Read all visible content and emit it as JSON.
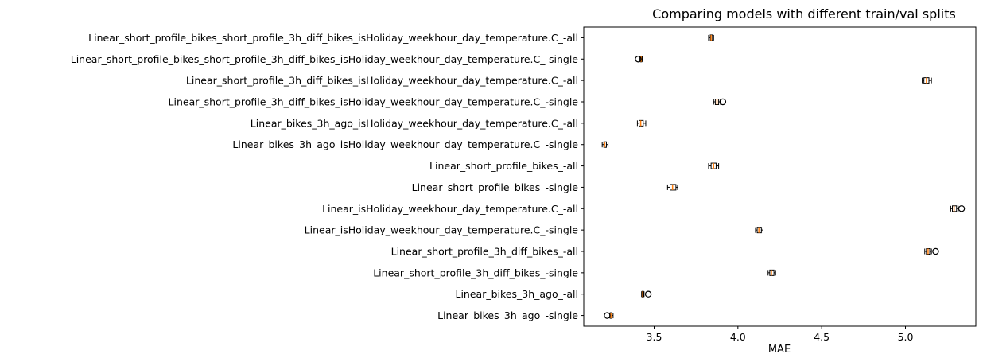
{
  "chart_data": {
    "type": "box",
    "orientation": "horizontal",
    "title": "Comparing models with different train/val splits",
    "xlabel": "MAE",
    "ylabel": "",
    "xlim": [
      3.08,
      5.42
    ],
    "xticks": [
      "3.5",
      "4.0",
      "4.5",
      "5.0"
    ],
    "xtick_values": [
      3.5,
      4.0,
      4.5,
      5.0
    ],
    "grid": false,
    "colors": {
      "box": "#000000",
      "median": "#ff7f0e",
      "flier": "#000000"
    },
    "categories": [
      "Linear_short_profile_bikes_short_profile_3h_diff_bikes_isHoliday_weekhour_day_temperature.C_-all",
      "Linear_short_profile_bikes_short_profile_3h_diff_bikes_isHoliday_weekhour_day_temperature.C_-single",
      "Linear_short_profile_3h_diff_bikes_isHoliday_weekhour_day_temperature.C_-all",
      "Linear_short_profile_3h_diff_bikes_isHoliday_weekhour_day_temperature.C_-single",
      "Linear_bikes_3h_ago_isHoliday_weekhour_day_temperature.C_-all",
      "Linear_bikes_3h_ago_isHoliday_weekhour_day_temperature.C_-single",
      "Linear_short_profile_bikes_-all",
      "Linear_short_profile_bikes_-single",
      "Linear_isHoliday_weekhour_day_temperature.C_-all",
      "Linear_isHoliday_weekhour_day_temperature.C_-single",
      "Linear_short_profile_3h_diff_bikes_-all",
      "Linear_short_profile_3h_diff_bikes_-single",
      "Linear_bikes_3h_ago_-all",
      "Linear_bikes_3h_ago_-single"
    ],
    "boxes": [
      {
        "whislo": 3.825,
        "q1": 3.835,
        "med": 3.84,
        "q3": 3.848,
        "whishi": 3.855,
        "fliers": []
      },
      {
        "whislo": 3.415,
        "q1": 3.418,
        "med": 3.422,
        "q3": 3.426,
        "whishi": 3.43,
        "fliers": [
          3.405
        ]
      },
      {
        "whislo": 5.1,
        "q1": 5.11,
        "med": 5.125,
        "q3": 5.14,
        "whishi": 5.155,
        "fliers": []
      },
      {
        "whislo": 3.855,
        "q1": 3.865,
        "med": 3.875,
        "q3": 3.885,
        "whishi": 3.895,
        "fliers": [
          3.91
        ]
      },
      {
        "whislo": 3.4,
        "q1": 3.41,
        "med": 3.42,
        "q3": 3.435,
        "whishi": 3.45,
        "fliers": []
      },
      {
        "whislo": 3.19,
        "q1": 3.2,
        "med": 3.205,
        "q3": 3.215,
        "whishi": 3.225,
        "fliers": []
      },
      {
        "whislo": 3.825,
        "q1": 3.84,
        "med": 3.855,
        "q3": 3.87,
        "whishi": 3.885,
        "fliers": []
      },
      {
        "whislo": 3.58,
        "q1": 3.595,
        "med": 3.61,
        "q3": 3.63,
        "whishi": 3.64,
        "fliers": []
      },
      {
        "whislo": 5.27,
        "q1": 5.28,
        "med": 5.29,
        "q3": 5.305,
        "whishi": 5.315,
        "fliers": [
          5.335
        ]
      },
      {
        "whislo": 4.105,
        "q1": 4.115,
        "med": 4.125,
        "q3": 4.14,
        "whishi": 4.15,
        "fliers": []
      },
      {
        "whislo": 5.115,
        "q1": 5.125,
        "med": 5.135,
        "q3": 5.145,
        "whishi": 5.155,
        "fliers": [
          5.18
        ]
      },
      {
        "whislo": 4.18,
        "q1": 4.19,
        "med": 4.2,
        "q3": 4.215,
        "whishi": 4.225,
        "fliers": []
      },
      {
        "whislo": 3.425,
        "q1": 3.428,
        "med": 3.432,
        "q3": 3.436,
        "whishi": 3.44,
        "fliers": [
          3.465
        ]
      },
      {
        "whislo": 3.235,
        "q1": 3.238,
        "med": 3.242,
        "q3": 3.248,
        "whishi": 3.255,
        "fliers": [
          3.22
        ]
      }
    ]
  }
}
